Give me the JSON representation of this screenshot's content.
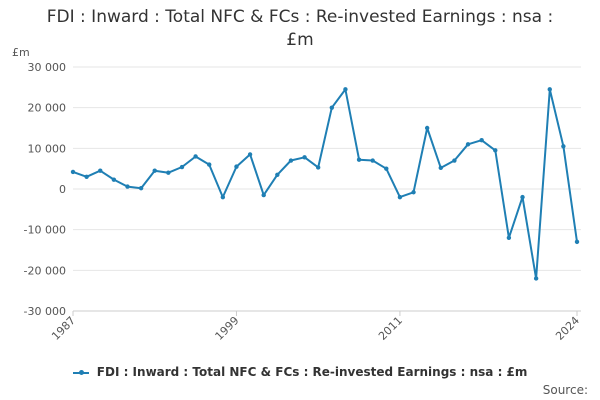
{
  "chart_data": {
    "type": "line",
    "title_line1": "FDI : Inward : Total NFC & FCs : Re-invested Earnings : nsa :",
    "title_line2": "£m",
    "ylabel": "£m",
    "ylim": [
      -30000,
      30000
    ],
    "yticks": [
      30000,
      20000,
      10000,
      0,
      -10000,
      -20000,
      -30000
    ],
    "ytick_labels": [
      "30 000",
      "20 000",
      "10 000",
      "0",
      "-10 000",
      "-20 000",
      "-30 000"
    ],
    "xlim": [
      1987,
      2024
    ],
    "xticks": [
      1987,
      1999,
      2011,
      2024
    ],
    "xtick_labels": [
      "1987",
      "1999",
      "2011",
      "2024"
    ],
    "grid": true,
    "legend_position": "bottom",
    "series": [
      {
        "name": "FDI : Inward : Total NFC & FCs : Re-invested Earnings : nsa : £m",
        "color": "#1f7fb4",
        "x": [
          1987,
          1988,
          1989,
          1990,
          1991,
          1992,
          1993,
          1994,
          1995,
          1996,
          1997,
          1998,
          1999,
          2000,
          2001,
          2002,
          2003,
          2004,
          2005,
          2006,
          2007,
          2008,
          2009,
          2010,
          2011,
          2012,
          2013,
          2014,
          2015,
          2016,
          2017,
          2018,
          2019,
          2020,
          2021,
          2022,
          2023,
          2024
        ],
        "values": [
          4200,
          3000,
          4500,
          2300,
          600,
          200,
          4500,
          4000,
          5400,
          8000,
          6000,
          -2000,
          5500,
          8500,
          -1500,
          3500,
          7000,
          7800,
          5300,
          20000,
          24500,
          7200,
          7000,
          5000,
          -2000,
          -800,
          15000,
          5200,
          7000,
          11000,
          12000,
          9500,
          -12000,
          -2000,
          -22000,
          24500,
          10500,
          -13000
        ]
      }
    ],
    "legend": {
      "label": "FDI : Inward : Total NFC & FCs : Re-invested Earnings : nsa : £m"
    },
    "source": "Source:"
  }
}
